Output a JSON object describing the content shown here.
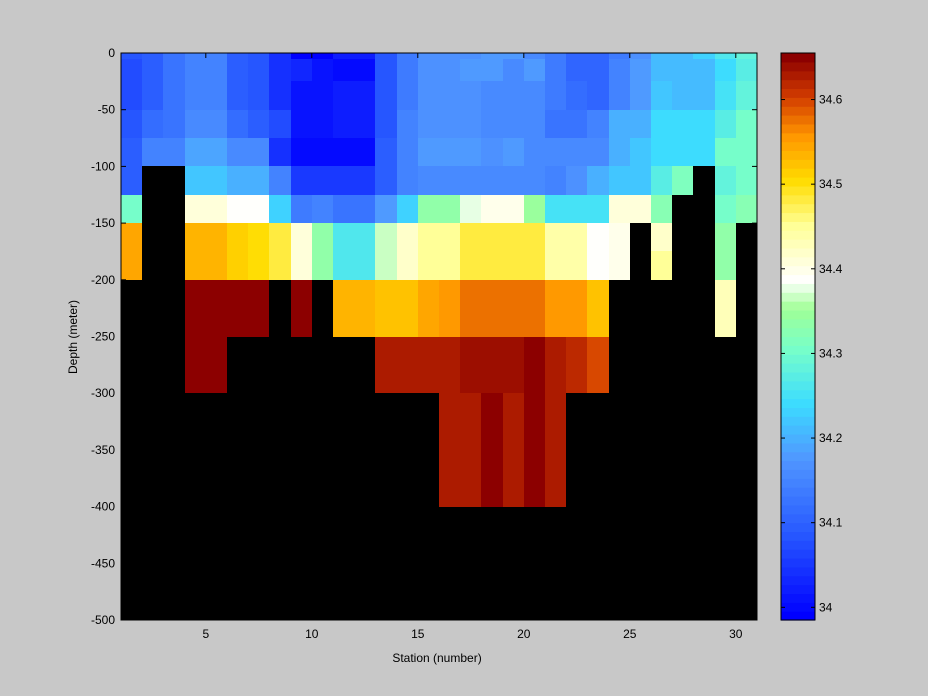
{
  "chart_data": {
    "type": "heatmap",
    "xlabel": "Station (number)",
    "ylabel": "Depth (meter)",
    "xlim": [
      1,
      31
    ],
    "ylim": [
      -500,
      0
    ],
    "x_ticks": [
      5,
      10,
      15,
      20,
      25,
      30
    ],
    "y_ticks": [
      0,
      -50,
      -100,
      -150,
      -200,
      -250,
      -300,
      -350,
      -400,
      -450,
      -500
    ],
    "x_start": 1,
    "x_step": 1,
    "depth_bins_top": [
      0,
      -5,
      -25,
      -50,
      -75,
      -100,
      -125,
      -150,
      -175,
      -200,
      -225,
      -250,
      -275,
      -300,
      -325,
      -350,
      -375,
      -400,
      -500
    ],
    "colorbar": {
      "range": [
        33.985,
        34.655
      ],
      "ticks": [
        34,
        34.1,
        34.2,
        34.3,
        34.4,
        34.5,
        34.6
      ],
      "colormap": "jet-white",
      "levels": 64
    },
    "masked_color": "#000000",
    "salinity_rows": [
      [
        34.08,
        34.1,
        34.13,
        34.15,
        34.15,
        34.1,
        34.08,
        34.04,
        33.99,
        33.99,
        34.02,
        34.02,
        34.08,
        34.14,
        34.17,
        34.17,
        34.17,
        34.18,
        34.18,
        34.16,
        34.14,
        34.11,
        34.11,
        34.14,
        34.17,
        34.21,
        34.21,
        34.23,
        34.26,
        34.28,
        34.38
      ],
      [
        34.07,
        34.1,
        34.13,
        34.15,
        34.15,
        34.1,
        34.08,
        34.04,
        34.03,
        34.01,
        34.0,
        34.0,
        34.08,
        34.14,
        34.17,
        34.17,
        34.18,
        34.18,
        34.16,
        34.18,
        34.14,
        34.11,
        34.11,
        34.15,
        34.18,
        34.21,
        34.21,
        34.21,
        34.24,
        34.27,
        34.38
      ],
      [
        34.07,
        34.1,
        34.13,
        34.15,
        34.15,
        34.1,
        34.08,
        34.04,
        34.01,
        34.01,
        34.02,
        34.02,
        34.08,
        34.14,
        34.17,
        34.17,
        34.17,
        34.16,
        34.16,
        34.16,
        34.14,
        34.12,
        34.11,
        34.15,
        34.18,
        34.22,
        34.21,
        34.21,
        34.25,
        34.28,
        34.38
      ],
      [
        34.08,
        34.12,
        34.13,
        34.16,
        34.16,
        34.12,
        34.09,
        34.07,
        34.01,
        34.01,
        34.02,
        34.02,
        34.08,
        34.15,
        34.17,
        34.17,
        34.17,
        34.16,
        34.16,
        34.16,
        34.13,
        34.13,
        34.15,
        34.2,
        34.2,
        34.24,
        34.24,
        34.24,
        34.27,
        34.3,
        34.38
      ],
      [
        34.1,
        34.15,
        34.15,
        34.19,
        34.19,
        34.16,
        34.16,
        34.04,
        34.0,
        34.0,
        34.0,
        34.0,
        34.1,
        34.15,
        34.18,
        34.18,
        34.18,
        34.17,
        34.18,
        34.16,
        34.16,
        34.16,
        34.16,
        34.2,
        34.22,
        34.24,
        34.24,
        34.24,
        34.3,
        34.3,
        34.38
      ],
      [
        34.09,
        null,
        null,
        34.22,
        34.22,
        34.2,
        34.2,
        34.15,
        34.05,
        34.05,
        34.05,
        34.05,
        34.09,
        34.15,
        34.16,
        34.16,
        34.16,
        34.16,
        34.16,
        34.16,
        34.15,
        34.17,
        34.2,
        34.22,
        34.22,
        34.27,
        34.31,
        null,
        34.28,
        34.3,
        34.38
      ],
      [
        34.3,
        null,
        null,
        34.41,
        34.41,
        34.39,
        34.39,
        34.23,
        34.14,
        34.15,
        34.13,
        34.13,
        34.18,
        34.23,
        34.34,
        34.34,
        34.38,
        34.4,
        34.4,
        34.35,
        34.25,
        34.25,
        34.25,
        34.41,
        34.41,
        34.33,
        null,
        null,
        34.3,
        34.33,
        null
      ],
      [
        34.54,
        null,
        null,
        34.53,
        34.53,
        34.51,
        34.5,
        34.48,
        34.41,
        34.34,
        34.26,
        34.26,
        34.37,
        34.42,
        34.45,
        34.45,
        34.48,
        34.48,
        34.48,
        34.48,
        34.44,
        34.44,
        34.39,
        34.4,
        null,
        34.42,
        null,
        null,
        34.34,
        null,
        null
      ],
      [
        34.54,
        null,
        null,
        34.53,
        34.53,
        34.51,
        34.5,
        34.48,
        34.41,
        34.34,
        34.26,
        34.26,
        34.37,
        34.42,
        34.45,
        34.45,
        34.48,
        34.48,
        34.48,
        34.48,
        34.44,
        34.44,
        34.39,
        34.4,
        null,
        34.45,
        null,
        null,
        34.34,
        null,
        null
      ],
      [
        null,
        null,
        null,
        34.66,
        34.66,
        34.66,
        34.66,
        null,
        34.66,
        null,
        34.53,
        34.53,
        34.52,
        34.52,
        34.54,
        34.56,
        34.58,
        34.58,
        34.58,
        34.58,
        34.56,
        34.56,
        34.52,
        null,
        null,
        null,
        null,
        null,
        34.43,
        null,
        null
      ],
      [
        null,
        null,
        null,
        34.66,
        34.66,
        34.66,
        34.66,
        null,
        34.66,
        null,
        34.53,
        34.53,
        34.52,
        34.52,
        34.54,
        34.56,
        34.58,
        34.58,
        34.58,
        34.58,
        34.56,
        34.56,
        34.52,
        null,
        null,
        null,
        null,
        null,
        34.43,
        null,
        null
      ],
      [
        null,
        null,
        null,
        34.66,
        34.66,
        null,
        null,
        null,
        null,
        null,
        null,
        null,
        34.63,
        34.63,
        34.63,
        34.63,
        34.64,
        34.64,
        34.64,
        34.65,
        34.63,
        34.62,
        34.6,
        null,
        null,
        null,
        null,
        null,
        null,
        null,
        null
      ],
      [
        null,
        null,
        null,
        34.66,
        34.66,
        null,
        null,
        null,
        null,
        null,
        null,
        null,
        34.63,
        34.63,
        34.63,
        34.63,
        34.64,
        34.64,
        34.64,
        34.65,
        34.63,
        34.62,
        34.6,
        null,
        null,
        null,
        null,
        null,
        null,
        null,
        null
      ],
      [
        null,
        null,
        null,
        null,
        null,
        null,
        null,
        null,
        null,
        null,
        null,
        null,
        null,
        null,
        null,
        34.63,
        34.63,
        34.65,
        34.63,
        34.65,
        34.63,
        null,
        null,
        null,
        null,
        null,
        null,
        null,
        null,
        null,
        null
      ],
      [
        null,
        null,
        null,
        null,
        null,
        null,
        null,
        null,
        null,
        null,
        null,
        null,
        null,
        null,
        null,
        34.63,
        34.63,
        34.65,
        34.63,
        34.65,
        34.63,
        null,
        null,
        null,
        null,
        null,
        null,
        null,
        null,
        null,
        null
      ],
      [
        null,
        null,
        null,
        null,
        null,
        null,
        null,
        null,
        null,
        null,
        null,
        null,
        null,
        null,
        null,
        34.63,
        34.63,
        34.65,
        34.63,
        34.65,
        34.63,
        null,
        null,
        null,
        null,
        null,
        null,
        null,
        null,
        null,
        null
      ],
      [
        null,
        null,
        null,
        null,
        null,
        null,
        null,
        null,
        null,
        null,
        null,
        null,
        null,
        null,
        null,
        34.63,
        34.63,
        34.65,
        34.63,
        34.65,
        34.63,
        null,
        null,
        null,
        null,
        null,
        null,
        null,
        null,
        null,
        null
      ],
      [
        null,
        null,
        null,
        null,
        null,
        null,
        null,
        null,
        null,
        null,
        null,
        null,
        null,
        null,
        null,
        null,
        null,
        null,
        null,
        null,
        null,
        null,
        null,
        null,
        null,
        null,
        null,
        null,
        null,
        null,
        null
      ]
    ]
  }
}
